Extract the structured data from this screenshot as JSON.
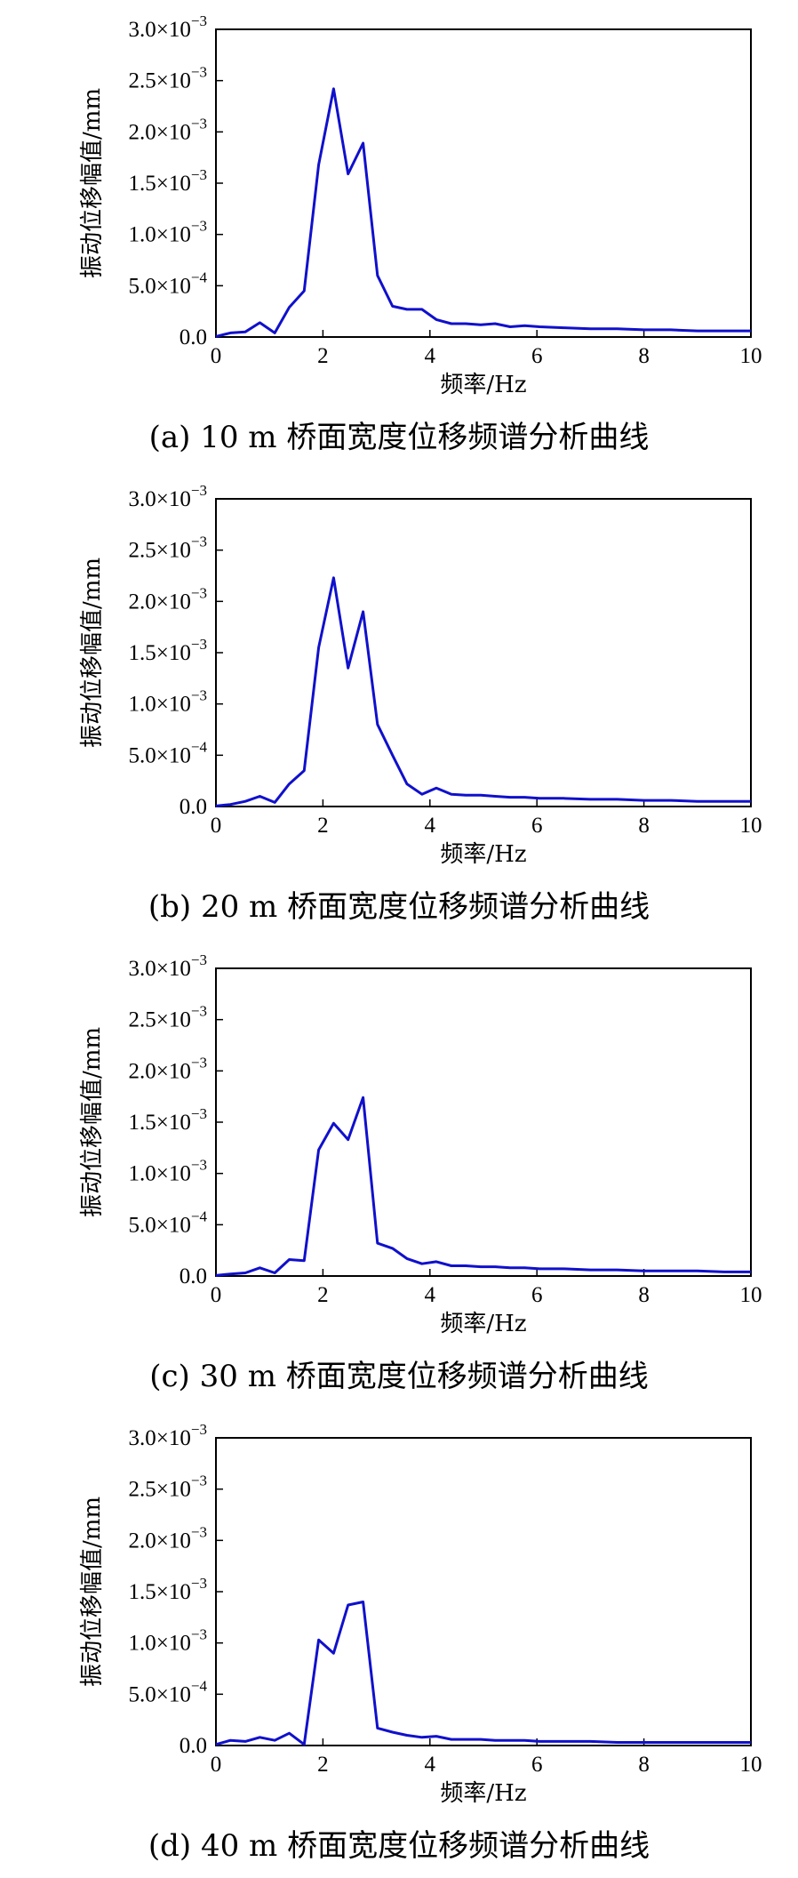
{
  "chart_data": [
    {
      "type": "line",
      "caption": "(a) 10 m 桥面宽度位移频谱分析曲线",
      "xlabel": "频率/Hz",
      "ylabel": "振动位移幅值/mm",
      "xlim": [
        0,
        10
      ],
      "ylim": [
        0,
        0.003
      ],
      "xticks": [
        "0",
        "2",
        "4",
        "6",
        "8",
        "10"
      ],
      "yticks": [
        "0.0",
        "5.0×10",
        "1.0×10",
        "1.5×10",
        "2.0×10",
        "2.5×10",
        "3.0×10"
      ],
      "ytick_exponents": [
        "",
        "−4",
        "−3",
        "−3",
        "−3",
        "−3",
        "−3"
      ],
      "line_color": "#1010cc",
      "x": [
        0,
        0.27,
        0.55,
        0.82,
        1.1,
        1.37,
        1.65,
        1.92,
        2.2,
        2.47,
        2.75,
        3.02,
        3.3,
        3.57,
        3.85,
        4.12,
        4.4,
        4.67,
        4.95,
        5.22,
        5.5,
        5.77,
        6.05,
        6.5,
        7.0,
        7.5,
        8.0,
        8.5,
        9.0,
        9.5,
        10.0
      ],
      "y": [
        5e-06,
        4e-05,
        5e-05,
        0.00014,
        4e-05,
        0.00029,
        0.00045,
        0.00168,
        0.00242,
        0.00159,
        0.00189,
        0.0006,
        0.0003,
        0.00027,
        0.00027,
        0.00017,
        0.00013,
        0.00013,
        0.00012,
        0.00013,
        0.0001,
        0.00011,
        0.0001,
        9e-05,
        8e-05,
        8e-05,
        7e-05,
        7e-05,
        6e-05,
        6e-05,
        6e-05
      ]
    },
    {
      "type": "line",
      "caption": "(b) 20 m 桥面宽度位移频谱分析曲线",
      "xlabel": "频率/Hz",
      "ylabel": "振动位移幅值/mm",
      "xlim": [
        0,
        10
      ],
      "ylim": [
        0,
        0.003
      ],
      "xticks": [
        "0",
        "2",
        "4",
        "6",
        "8",
        "10"
      ],
      "yticks": [
        "0.0",
        "5.0×10",
        "1.0×10",
        "1.5×10",
        "2.0×10",
        "2.5×10",
        "3.0×10"
      ],
      "ytick_exponents": [
        "",
        "−4",
        "−3",
        "−3",
        "−3",
        "−3",
        "−3"
      ],
      "line_color": "#1010cc",
      "x": [
        0,
        0.27,
        0.55,
        0.82,
        1.1,
        1.37,
        1.65,
        1.92,
        2.2,
        2.47,
        2.75,
        3.02,
        3.3,
        3.57,
        3.85,
        4.12,
        4.4,
        4.67,
        4.95,
        5.22,
        5.5,
        5.77,
        6.05,
        6.5,
        7.0,
        7.5,
        8.0,
        8.5,
        9.0,
        9.5,
        10.0
      ],
      "y": [
        5e-06,
        2e-05,
        5e-05,
        0.0001,
        4e-05,
        0.00022,
        0.00035,
        0.00155,
        0.00223,
        0.00135,
        0.0019,
        0.0008,
        0.0005,
        0.00022,
        0.00012,
        0.00018,
        0.00012,
        0.00011,
        0.00011,
        0.0001,
        9e-05,
        9e-05,
        8e-05,
        8e-05,
        7e-05,
        7e-05,
        6e-05,
        6e-05,
        5e-05,
        5e-05,
        5e-05
      ]
    },
    {
      "type": "line",
      "caption": "(c) 30 m 桥面宽度位移频谱分析曲线",
      "xlabel": "频率/Hz",
      "ylabel": "振动位移幅值/mm",
      "xlim": [
        0,
        10
      ],
      "ylim": [
        0,
        0.003
      ],
      "xticks": [
        "0",
        "2",
        "4",
        "6",
        "8",
        "10"
      ],
      "yticks": [
        "0.0",
        "5.0×10",
        "1.0×10",
        "1.5×10",
        "2.0×10",
        "2.5×10",
        "3.0×10"
      ],
      "ytick_exponents": [
        "",
        "−4",
        "−3",
        "−3",
        "−3",
        "−3",
        "−3"
      ],
      "line_color": "#1010cc",
      "x": [
        0,
        0.27,
        0.55,
        0.82,
        1.1,
        1.37,
        1.65,
        1.92,
        2.2,
        2.47,
        2.75,
        3.02,
        3.3,
        3.57,
        3.85,
        4.12,
        4.4,
        4.67,
        4.95,
        5.22,
        5.5,
        5.77,
        6.05,
        6.5,
        7.0,
        7.5,
        8.0,
        8.5,
        9.0,
        9.5,
        10.0
      ],
      "y": [
        5e-06,
        2e-05,
        3e-05,
        8e-05,
        3e-05,
        0.00016,
        0.00015,
        0.00123,
        0.00149,
        0.00133,
        0.00174,
        0.00032,
        0.00027,
        0.00017,
        0.00012,
        0.00014,
        0.0001,
        0.0001,
        9e-05,
        9e-05,
        8e-05,
        8e-05,
        7e-05,
        7e-05,
        6e-05,
        6e-05,
        5e-05,
        5e-05,
        5e-05,
        4e-05,
        4e-05
      ]
    },
    {
      "type": "line",
      "caption": "(d) 40 m 桥面宽度位移频谱分析曲线",
      "xlabel": "频率/Hz",
      "ylabel": "振动位移幅值/mm",
      "xlim": [
        0,
        10
      ],
      "ylim": [
        0,
        0.003
      ],
      "xticks": [
        "0",
        "2",
        "4",
        "6",
        "8",
        "10"
      ],
      "yticks": [
        "0.0",
        "5.0×10",
        "1.0×10",
        "1.5×10",
        "2.0×10",
        "2.5×10",
        "3.0×10"
      ],
      "ytick_exponents": [
        "",
        "−4",
        "−3",
        "−3",
        "−3",
        "−3",
        "−3"
      ],
      "line_color": "#1010cc",
      "x": [
        0,
        0.27,
        0.55,
        0.82,
        1.1,
        1.37,
        1.65,
        1.92,
        2.2,
        2.47,
        2.75,
        3.02,
        3.3,
        3.57,
        3.85,
        4.12,
        4.4,
        4.67,
        4.95,
        5.22,
        5.5,
        5.77,
        6.05,
        6.5,
        7.0,
        7.5,
        8.0,
        8.5,
        9.0,
        9.5,
        10.0
      ],
      "y": [
        1e-05,
        5e-05,
        4e-05,
        8e-05,
        5e-05,
        0.00012,
        1e-05,
        0.00103,
        0.0009,
        0.00137,
        0.0014,
        0.00017,
        0.00013,
        0.0001,
        8e-05,
        9e-05,
        6e-05,
        6e-05,
        6e-05,
        5e-05,
        5e-05,
        5e-05,
        4e-05,
        4e-05,
        4e-05,
        3e-05,
        3e-05,
        3e-05,
        3e-05,
        3e-05,
        3e-05
      ]
    }
  ]
}
